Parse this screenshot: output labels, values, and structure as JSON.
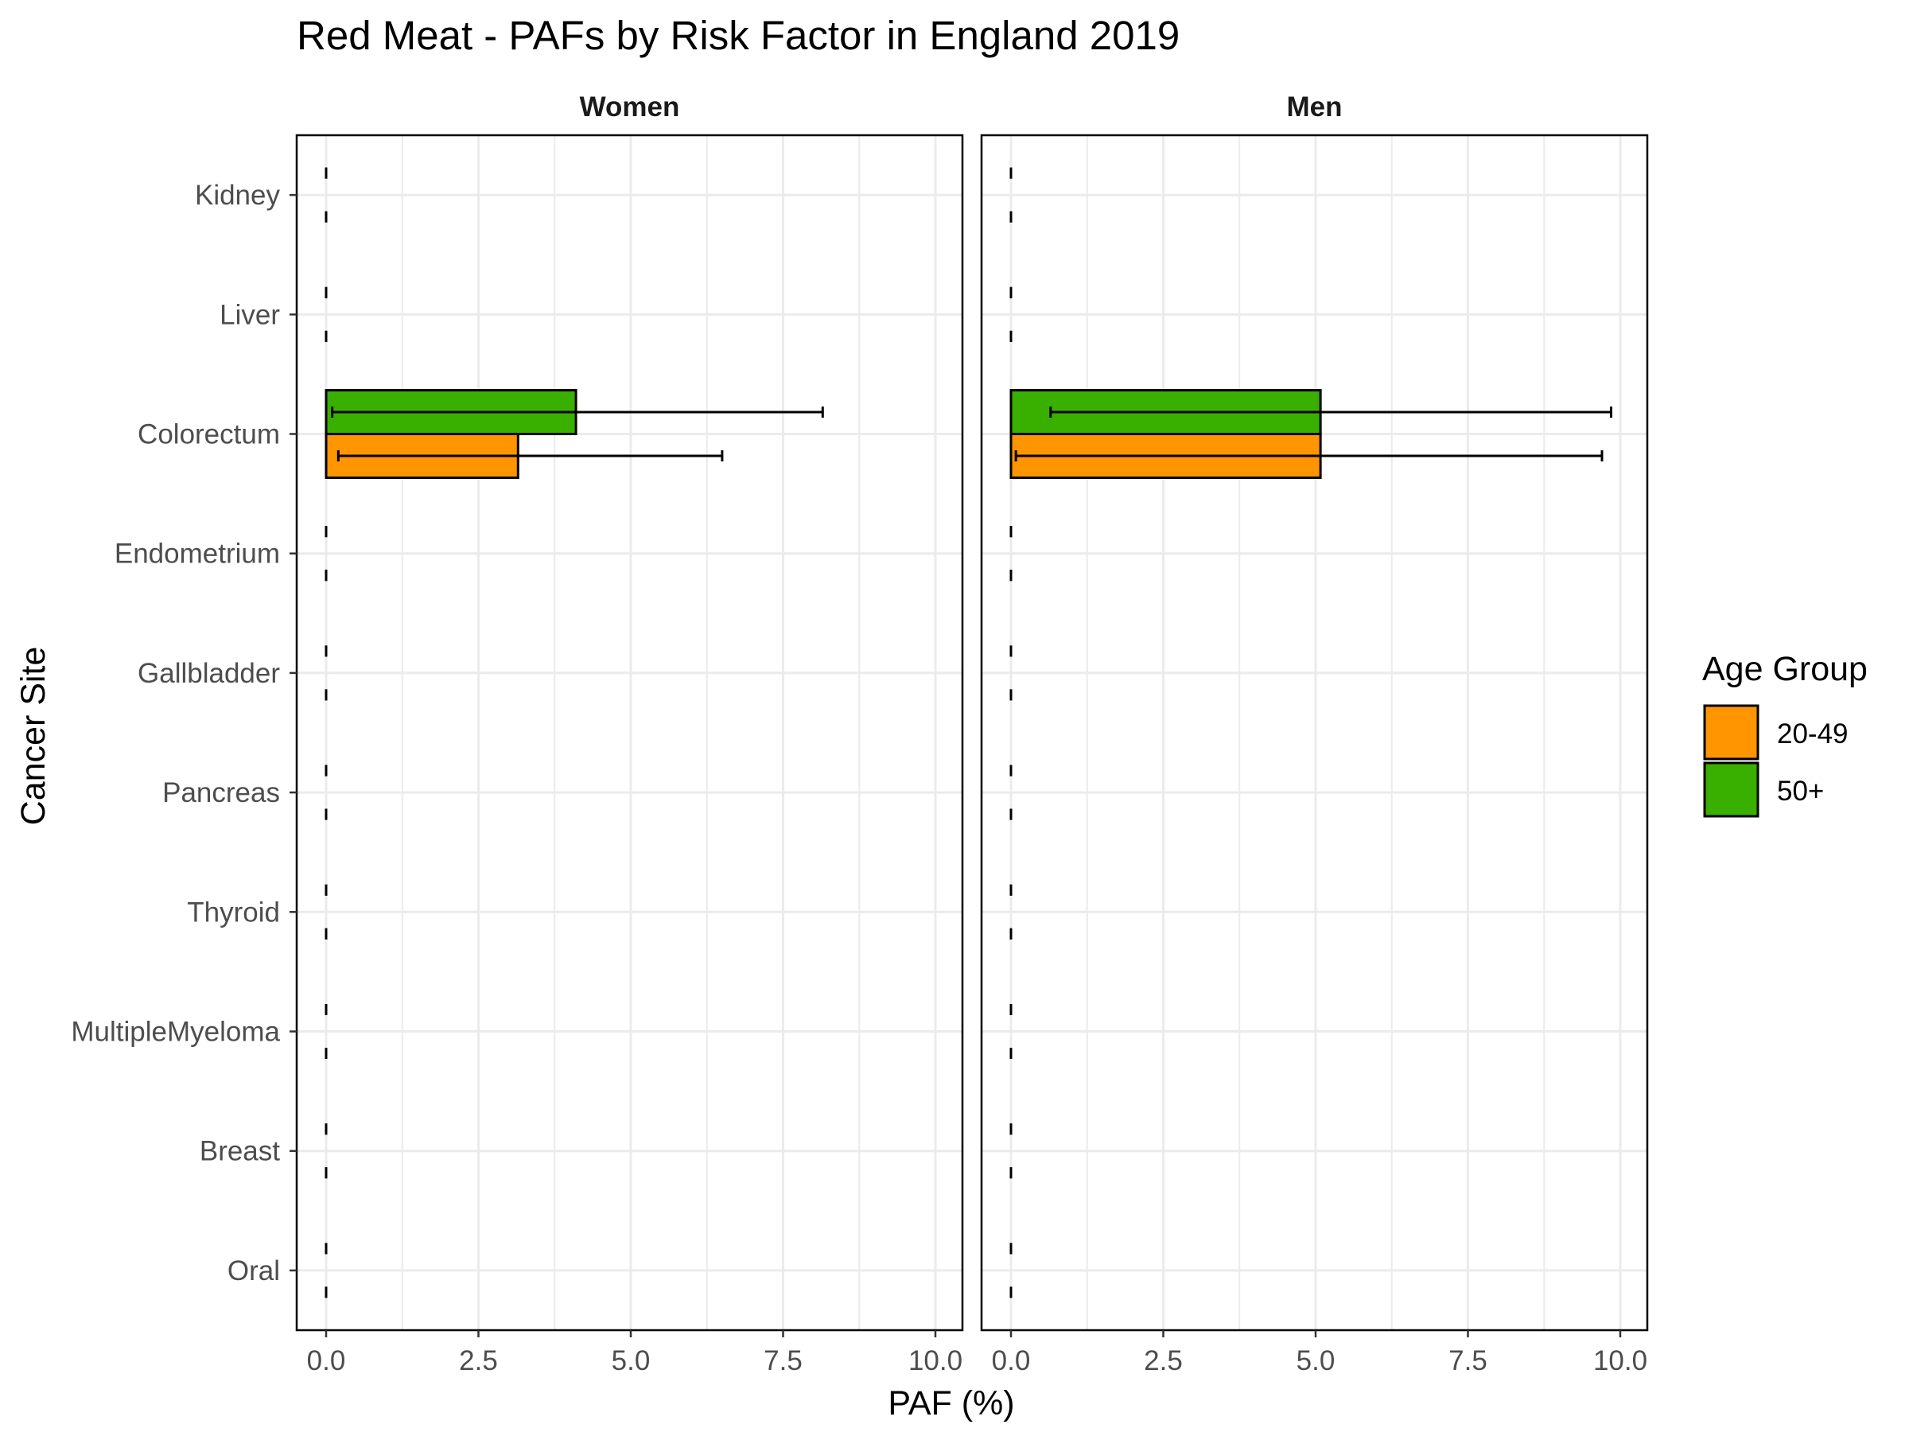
{
  "chart_data": {
    "type": "bar",
    "orientation": "horizontal",
    "title": "Red Meat  - PAFs by Risk Factor in England 2019",
    "xlabel": "PAF (%)",
    "ylabel": "Cancer Site",
    "xlim": [
      0,
      10
    ],
    "x_ticks": [
      "0.0",
      "2.5",
      "5.0",
      "7.5",
      "10.0"
    ],
    "x_tick_values": [
      0,
      2.5,
      5,
      7.5,
      10
    ],
    "grid": true,
    "legend": {
      "title": "Age Group",
      "position": "right",
      "items": [
        {
          "label": "20-49",
          "color": "#ff9500"
        },
        {
          "label": "50+",
          "color": "#39b000"
        }
      ]
    },
    "categories": [
      "Kidney",
      "Liver",
      "Colorectum",
      "Endometrium",
      "Gallbladder",
      "Pancreas",
      "Thyroid",
      "MultipleMyeloma",
      "Breast",
      "Oral"
    ],
    "facets": [
      {
        "name": "Women",
        "series": [
          {
            "name": "20-49",
            "values": [
              0,
              0,
              3.15,
              0,
              0,
              0,
              0,
              0,
              0,
              0
            ],
            "ci_low": [
              0,
              0,
              0.2,
              0,
              0,
              0,
              0,
              0,
              0,
              0
            ],
            "ci_high": [
              0,
              0,
              6.5,
              0,
              0,
              0,
              0,
              0,
              0,
              0
            ]
          },
          {
            "name": "50+",
            "values": [
              0,
              0,
              4.1,
              0,
              0,
              0,
              0,
              0,
              0,
              0
            ],
            "ci_low": [
              0,
              0,
              0.1,
              0,
              0,
              0,
              0,
              0,
              0,
              0
            ],
            "ci_high": [
              0,
              0,
              8.15,
              0,
              0,
              0,
              0,
              0,
              0,
              0
            ]
          }
        ]
      },
      {
        "name": "Men",
        "series": [
          {
            "name": "20-49",
            "values": [
              0,
              0,
              5.08,
              0,
              0,
              0,
              0,
              0,
              0,
              0
            ],
            "ci_low": [
              0,
              0,
              0.08,
              0,
              0,
              0,
              0,
              0,
              0,
              0
            ],
            "ci_high": [
              0,
              0,
              9.7,
              0,
              0,
              0,
              0,
              0,
              0,
              0
            ]
          },
          {
            "name": "50+",
            "values": [
              0,
              0,
              5.08,
              0,
              0,
              0,
              0,
              0,
              0,
              0
            ],
            "ci_low": [
              0,
              0,
              0.65,
              0,
              0,
              0,
              0,
              0,
              0,
              0
            ],
            "ci_high": [
              0,
              0,
              9.85,
              0,
              0,
              0,
              0,
              0,
              0,
              0
            ]
          }
        ]
      }
    ]
  }
}
